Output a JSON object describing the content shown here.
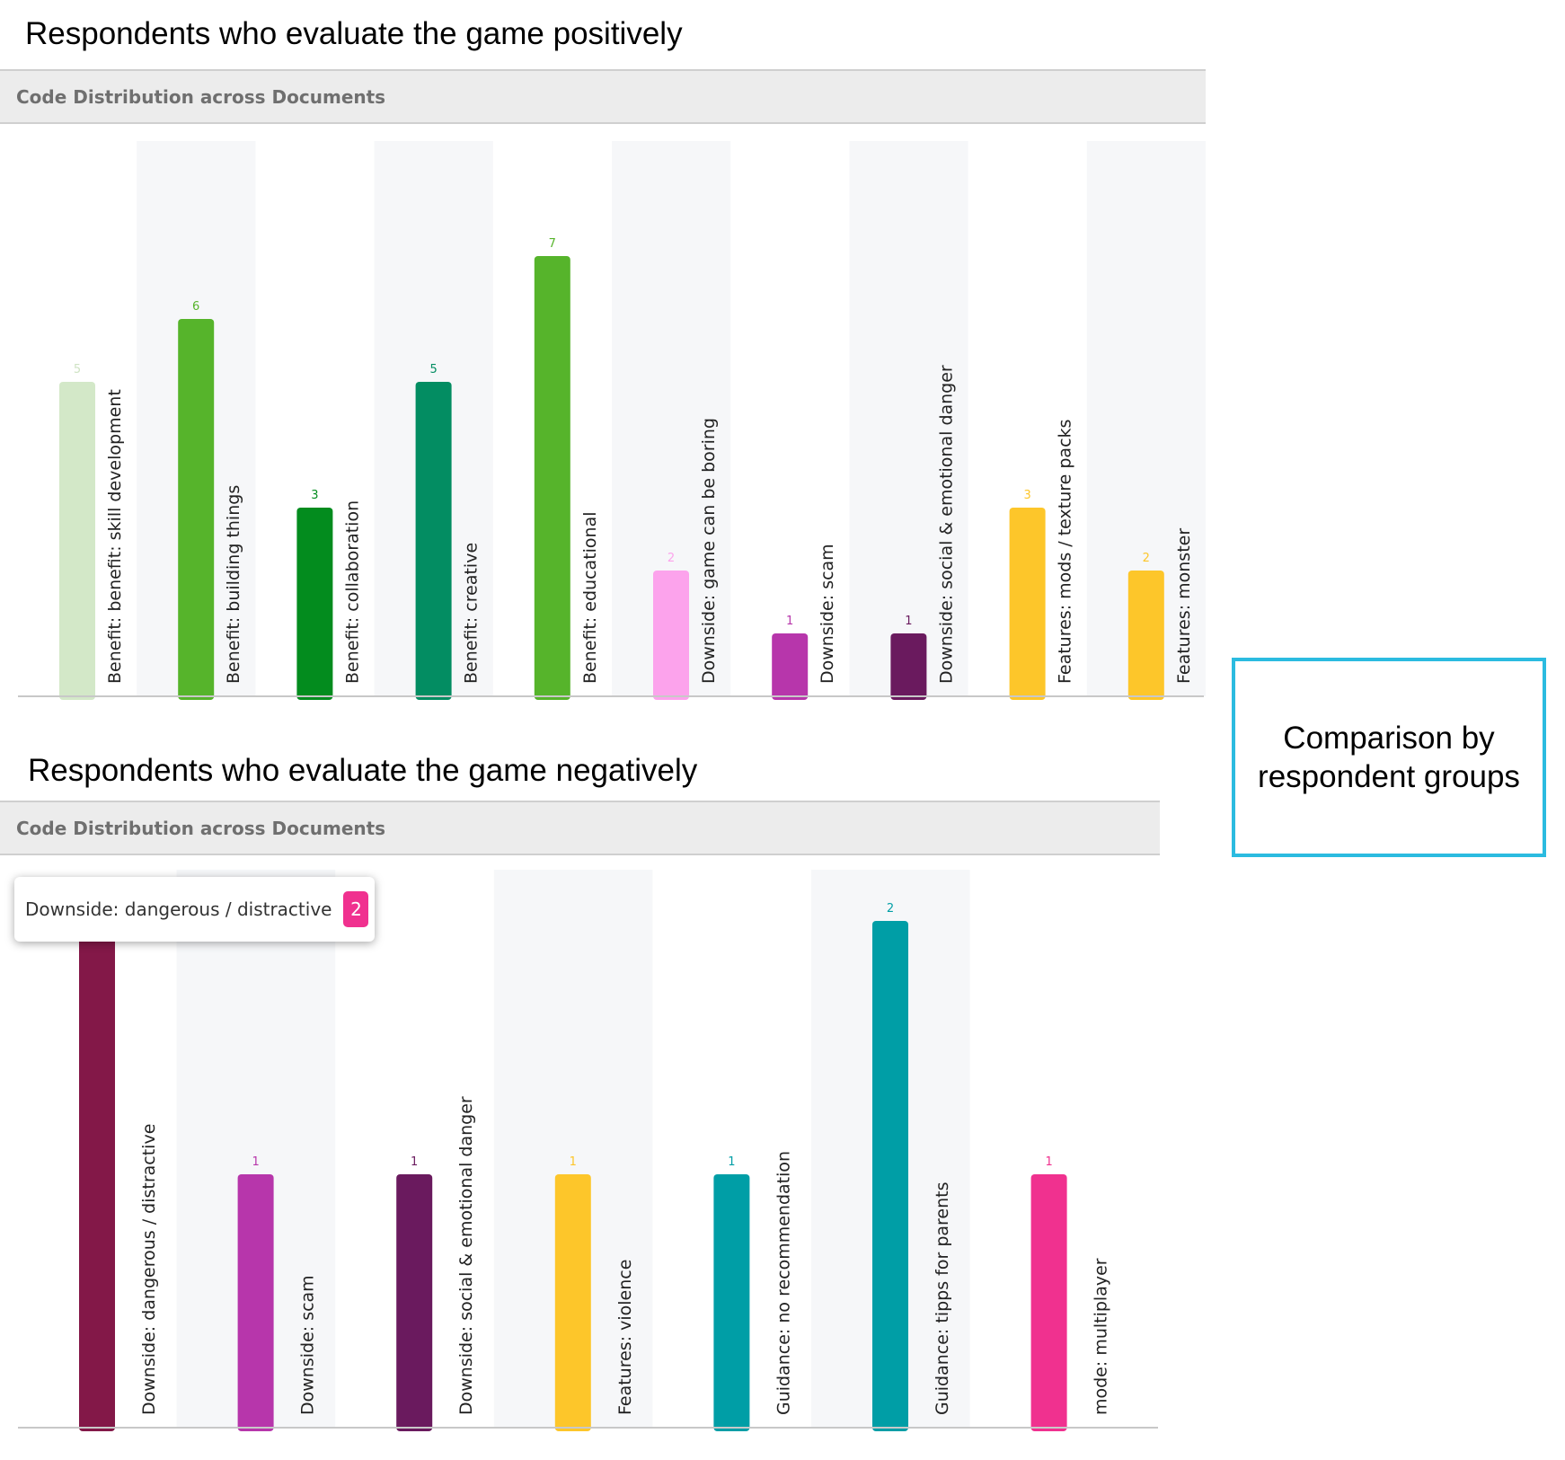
{
  "chart_data": [
    {
      "type": "bar",
      "section_title": "Respondents who evaluate the game positively",
      "panel_title": "Code Distribution across Documents",
      "categories": [
        "Benefit: benefit: skill development",
        "Benefit: building things",
        "Benefit: collaboration",
        "Benefit: creative",
        "Benefit: educational",
        "Downside: game can be boring",
        "Downside: scam",
        "Downside: social & emotional danger",
        "Features: mods / texture packs",
        "Features: monster"
      ],
      "values": [
        5,
        6,
        3,
        5,
        7,
        2,
        1,
        1,
        3,
        2
      ],
      "colors": [
        "#d3e8c8",
        "#56b42b",
        "#038c1e",
        "#038d62",
        "#56b42b",
        "#fca3ec",
        "#b736ab",
        "#6a1a5e",
        "#fdc62a",
        "#fdc62a"
      ],
      "label_colors": [
        "#cfe3c4",
        "#56b42b",
        "#038c1e",
        "#038d62",
        "#56b42b",
        "#fca3ec",
        "#b736ab",
        "#6a1a5e",
        "#fdc62a",
        "#fdc62a"
      ],
      "ylim": [
        0,
        7
      ],
      "grid": false,
      "legend": "none"
    },
    {
      "type": "bar",
      "section_title": "Respondents who evaluate the game negatively",
      "panel_title": "Code Distribution across Documents",
      "categories": [
        "Downside: dangerous / distractive",
        "Downside: scam",
        "Downside: social & emotional danger",
        "Features: violence",
        "Guidance: no recommendation",
        "Guidance: tipps for parents",
        "mode: multiplayer"
      ],
      "values": [
        2,
        1,
        1,
        1,
        1,
        2,
        1
      ],
      "colors": [
        "#831848",
        "#b736ab",
        "#6a1a5e",
        "#fdc62a",
        "#009ea6",
        "#009ea6",
        "#f0318f"
      ],
      "label_colors": [
        "#831848",
        "#b736ab",
        "#6a1a5e",
        "#fdc62a",
        "#009ea6",
        "#009ea6",
        "#f0318f"
      ],
      "ylim": [
        0,
        2
      ],
      "grid": false,
      "legend": "none",
      "tooltip": {
        "label": "Downside: dangerous / distractive",
        "value": "2",
        "badge_color": "#f0318f"
      }
    }
  ],
  "comparison_box": {
    "line1": "Comparison by",
    "line2": "respondent groups",
    "border_color": "#2bbbe0"
  }
}
